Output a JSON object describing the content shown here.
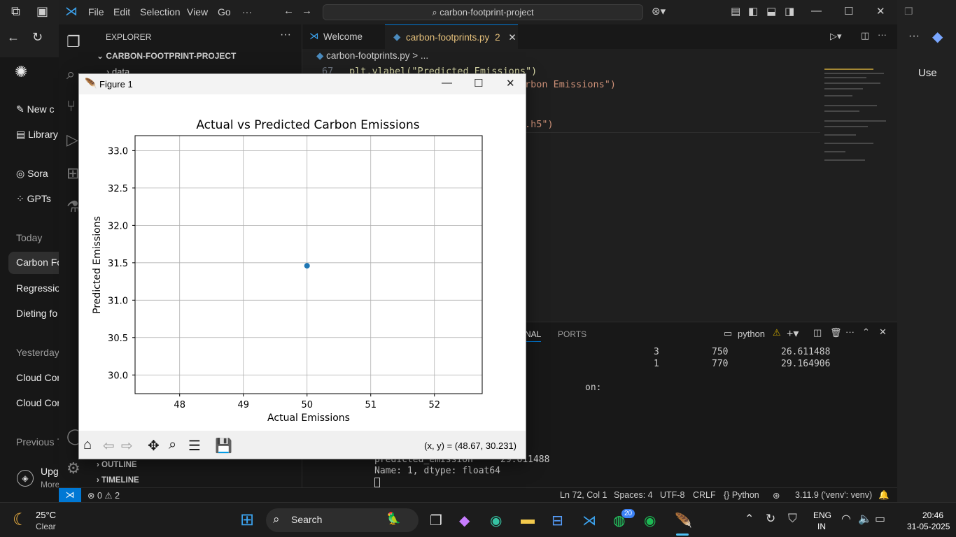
{
  "browser": {
    "chat_items": {
      "new_chat": "New c",
      "library": "Library",
      "sora": "Sora",
      "gpts": "GPTs",
      "today": "Today",
      "item1": "Carbon Fo",
      "item2": "Regressio",
      "item3": "Dieting fo",
      "yesterday": "Yesterday",
      "item4": "Cloud Cor",
      "item5": "Cloud Cor",
      "previous": "Previous 7",
      "upgrade": "Upg",
      "upgrade_sub": "More"
    },
    "right_label": "Use"
  },
  "vscode": {
    "menu": [
      "File",
      "Edit",
      "Selection",
      "View",
      "Go",
      "···"
    ],
    "search_text": "carbon-footprint-project",
    "explorer_title": "EXPLORER",
    "project": "CARBON-FOOTPRINT-PROJECT",
    "folder": "data",
    "outline": "OUTLINE",
    "timeline": "TIMELINE",
    "tabs": [
      {
        "label": "Welcome"
      },
      {
        "label": "carbon-footprints.py",
        "badge": "2"
      }
    ],
    "breadcrumb": "carbon-footprints.py > ...",
    "editor": {
      "line_no": "67",
      "line67": "plt.ylabel(\"Predicted Emissions\")",
      "line68_tail": "rbon Emissions\")",
      "line70_tail": ".h5\")"
    },
    "panel": {
      "tab_terminal": "NAL",
      "tab_ports": "PORTS",
      "terminal_name": "python",
      "rows": [
        {
          "a": "3",
          "b": "750",
          "c": "26.611488"
        },
        {
          "a": "1",
          "b": "770",
          "c": "29.164906"
        }
      ],
      "line_on": "on:",
      "line_pred": "predicted_emission     29.611488",
      "line_name": "Name: 1, dtype: float64"
    },
    "status": {
      "errors": "0",
      "warnings": "2",
      "position": "Ln 72, Col 1",
      "spaces": "Spaces: 4",
      "encoding": "UTF-8",
      "eol": "CRLF",
      "language": "Python",
      "interpreter": "3.11.9 ('venv': venv)"
    }
  },
  "figure": {
    "window_title": "Figure 1",
    "coords": "(x, y) = (48.67, 30.231)"
  },
  "chart_data": {
    "type": "scatter",
    "title": "Actual vs Predicted Carbon Emissions",
    "xlabel": "Actual Emissions",
    "ylabel": "Predicted Emissions",
    "xlim": [
      47.3,
      52.75
    ],
    "ylim": [
      29.75,
      33.2
    ],
    "xticks": [
      48,
      49,
      50,
      51,
      52
    ],
    "yticks": [
      30.0,
      30.5,
      31.0,
      31.5,
      32.0,
      32.5,
      33.0
    ],
    "grid": true,
    "points": [
      {
        "x": 50,
        "y": 31.46
      }
    ],
    "point_color": "#1f77b4"
  },
  "taskbar": {
    "weather_temp": "25°C",
    "weather_desc": "Clear",
    "search": "Search",
    "badge": "20",
    "lang": "ENG",
    "region": "IN",
    "time": "20:46",
    "date": "31-05-2025"
  }
}
